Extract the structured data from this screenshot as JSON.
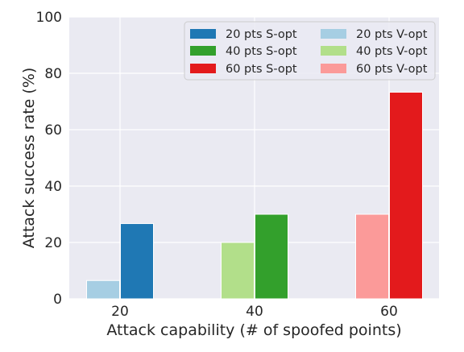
{
  "chart_data": {
    "type": "bar",
    "title": "",
    "xlabel": "Attack capability (# of spoofed points)",
    "ylabel": "Attack success rate (%)",
    "categories": [
      "20",
      "40",
      "60"
    ],
    "ylim": [
      0,
      100
    ],
    "yticks": [
      "0",
      "20",
      "40",
      "60",
      "80",
      "100"
    ],
    "grid": true,
    "legend_position": "top-right",
    "series": [
      {
        "name": "20 pts V-opt",
        "category": "20",
        "slot": "left",
        "value": 6.5,
        "color": "#a6cee3"
      },
      {
        "name": "20 pts S-opt",
        "category": "20",
        "slot": "right",
        "value": 26.7,
        "color": "#1f78b4"
      },
      {
        "name": "40 pts V-opt",
        "category": "40",
        "slot": "left",
        "value": 20,
        "color": "#b2df8a"
      },
      {
        "name": "40 pts S-opt",
        "category": "40",
        "slot": "right",
        "value": 30,
        "color": "#33a02c"
      },
      {
        "name": "60 pts V-opt",
        "category": "60",
        "slot": "left",
        "value": 30,
        "color": "#fb9a99"
      },
      {
        "name": "60 pts S-opt",
        "category": "60",
        "slot": "right",
        "value": 73.3,
        "color": "#e31a1c"
      }
    ],
    "legend": [
      {
        "label": "20 pts S-opt",
        "color": "#1f78b4"
      },
      {
        "label": "20 pts V-opt",
        "color": "#a6cee3"
      },
      {
        "label": "40 pts S-opt",
        "color": "#33a02c"
      },
      {
        "label": "40 pts V-opt",
        "color": "#b2df8a"
      },
      {
        "label": "60 pts S-opt",
        "color": "#e31a1c"
      },
      {
        "label": "60 pts V-opt",
        "color": "#fb9a99"
      }
    ],
    "plot_background": "#eaeaf2",
    "grid_color": "#ffffff"
  }
}
